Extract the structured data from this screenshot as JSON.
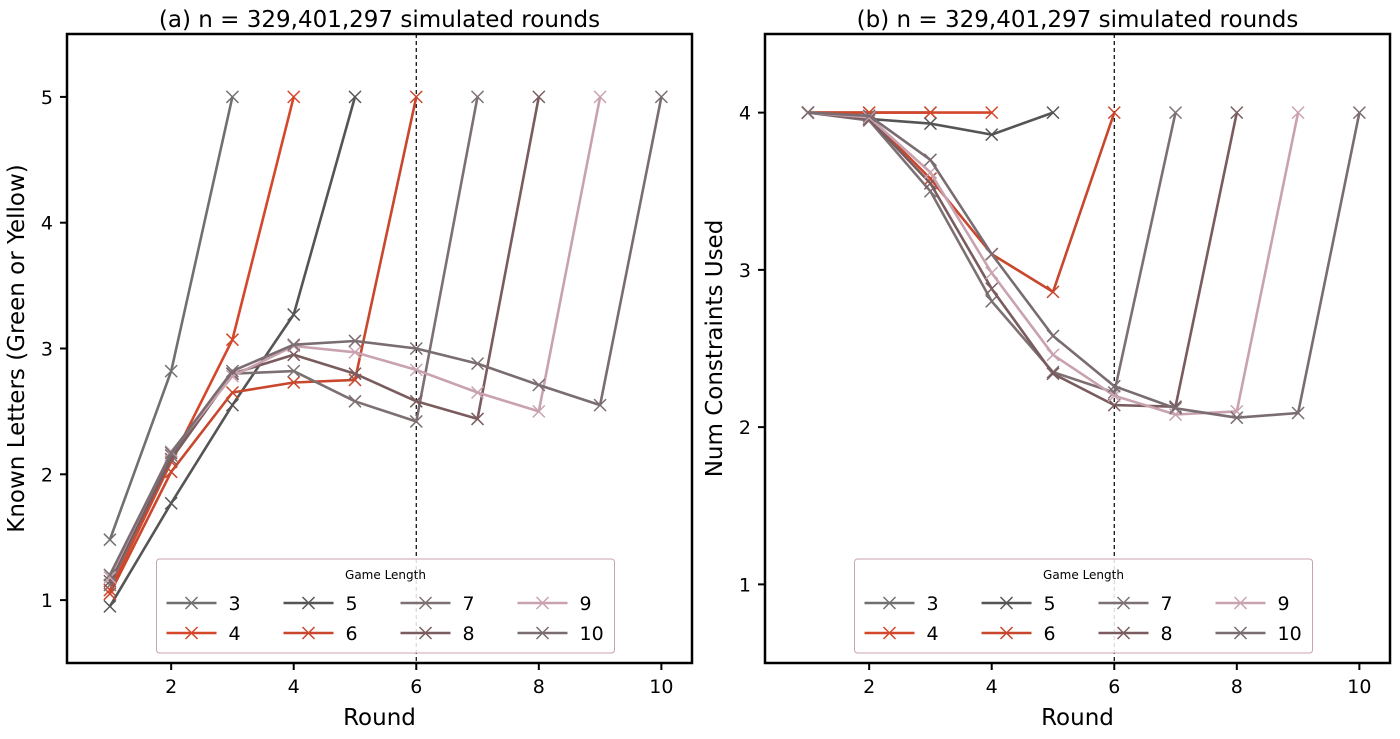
{
  "chart_data": [
    {
      "type": "line",
      "title": "(a) n = 329,401,297 simulated rounds",
      "xlabel": "Round",
      "ylabel": "Known Letters (Green or Yellow)",
      "xlim": [
        0.3,
        10.5
      ],
      "ylim": [
        0.5,
        5.5
      ],
      "xticks": [
        2,
        4,
        6,
        8,
        10
      ],
      "yticks": [
        1,
        2,
        3,
        4,
        5
      ],
      "vline": 6,
      "legend": {
        "title": "Game Length",
        "placement": "lower-center",
        "columns": 4
      },
      "series": [
        {
          "name": "3",
          "color": "#707070",
          "x": [
            1,
            2,
            3
          ],
          "values": [
            1.48,
            2.82,
            5.0
          ]
        },
        {
          "name": "4",
          "color": "#d4472b",
          "x": [
            1,
            2,
            3,
            4
          ],
          "values": [
            1.08,
            2.1,
            3.07,
            5.0
          ]
        },
        {
          "name": "5",
          "color": "#555555",
          "x": [
            1,
            2,
            3,
            4,
            5
          ],
          "values": [
            0.95,
            1.77,
            2.55,
            3.27,
            5.0
          ]
        },
        {
          "name": "6",
          "color": "#c8472d",
          "x": [
            1,
            2,
            3,
            4,
            5,
            6
          ],
          "values": [
            1.05,
            2.02,
            2.65,
            2.73,
            2.75,
            5.0
          ]
        },
        {
          "name": "7",
          "color": "#7d7072",
          "x": [
            1,
            2,
            3,
            4,
            5,
            6,
            7
          ],
          "values": [
            1.12,
            2.15,
            2.8,
            2.82,
            2.58,
            2.42,
            5.0
          ]
        },
        {
          "name": "8",
          "color": "#7a5c5f",
          "x": [
            1,
            2,
            3,
            4,
            5,
            6,
            7,
            8
          ],
          "values": [
            1.15,
            2.12,
            2.8,
            2.95,
            2.8,
            2.58,
            2.44,
            5.0
          ]
        },
        {
          "name": "9",
          "color": "#c9a2b0",
          "x": [
            1,
            2,
            3,
            4,
            5,
            6,
            7,
            8,
            9
          ],
          "values": [
            1.18,
            2.18,
            2.78,
            3.02,
            2.97,
            2.83,
            2.65,
            2.5,
            5.0
          ]
        },
        {
          "name": "10",
          "color": "#7a6d72",
          "x": [
            1,
            2,
            3,
            4,
            5,
            6,
            7,
            8,
            9,
            10
          ],
          "values": [
            1.2,
            2.17,
            2.82,
            3.03,
            3.06,
            3.0,
            2.88,
            2.71,
            2.55,
            5.0
          ]
        }
      ]
    },
    {
      "type": "line",
      "title": "(b) n = 329,401,297 simulated rounds",
      "xlabel": "Round",
      "ylabel": "Num Constraints Used",
      "xlim": [
        0.3,
        10.5
      ],
      "ylim": [
        0.5,
        4.5
      ],
      "xticks": [
        2,
        4,
        6,
        8,
        10
      ],
      "yticks": [
        1,
        2,
        3,
        4
      ],
      "vline": 6,
      "legend": {
        "title": "Game Length",
        "placement": "lower-center",
        "columns": 4
      },
      "series": [
        {
          "name": "3",
          "color": "#707070",
          "x": [
            1,
            2,
            3
          ],
          "values": [
            4.0,
            4.0,
            4.0
          ]
        },
        {
          "name": "4",
          "color": "#d4472b",
          "x": [
            1,
            2,
            3,
            4
          ],
          "values": [
            4.0,
            4.0,
            4.0,
            4.0
          ]
        },
        {
          "name": "5",
          "color": "#555555",
          "x": [
            1,
            2,
            3,
            4,
            5
          ],
          "values": [
            4.0,
            3.96,
            3.93,
            3.86,
            4.0
          ]
        },
        {
          "name": "6",
          "color": "#c8472d",
          "x": [
            1,
            2,
            3,
            4,
            5,
            6
          ],
          "values": [
            4.0,
            3.97,
            3.58,
            3.1,
            2.86,
            4.0
          ]
        },
        {
          "name": "7",
          "color": "#7d7072",
          "x": [
            1,
            2,
            3,
            4,
            5,
            6,
            7
          ],
          "values": [
            4.0,
            3.95,
            3.5,
            2.8,
            2.35,
            2.22,
            4.0
          ]
        },
        {
          "name": "8",
          "color": "#7a5c5f",
          "x": [
            1,
            2,
            3,
            4,
            5,
            6,
            7,
            8
          ],
          "values": [
            4.0,
            3.96,
            3.55,
            2.88,
            2.34,
            2.14,
            2.13,
            4.0
          ]
        },
        {
          "name": "9",
          "color": "#c9a2b0",
          "x": [
            1,
            2,
            3,
            4,
            5,
            6,
            7,
            8,
            9
          ],
          "values": [
            4.0,
            3.97,
            3.62,
            2.98,
            2.46,
            2.2,
            2.08,
            2.1,
            4.0
          ]
        },
        {
          "name": "10",
          "color": "#7a6d72",
          "x": [
            1,
            2,
            3,
            4,
            5,
            6,
            7,
            8,
            9,
            10
          ],
          "values": [
            4.0,
            3.98,
            3.7,
            3.1,
            2.58,
            2.26,
            2.12,
            2.06,
            2.09,
            4.0
          ]
        }
      ]
    }
  ]
}
